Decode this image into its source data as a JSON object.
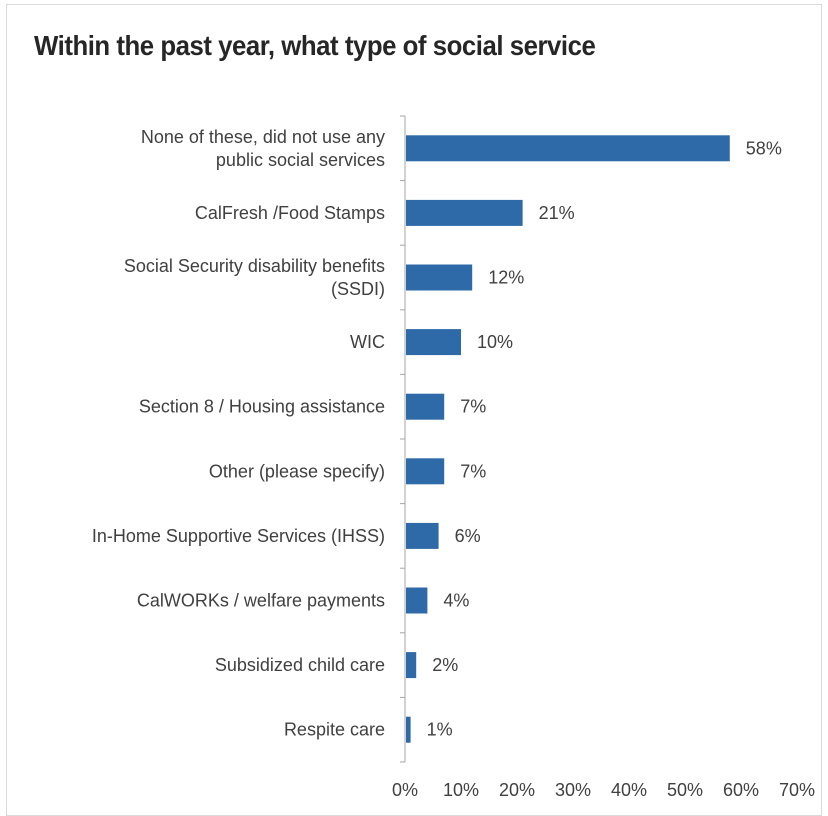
{
  "chart_data": {
    "type": "bar",
    "orientation": "horizontal",
    "title": "Within the past year, what type of social service",
    "categories": [
      [
        "None of these, did not use any",
        "public social services"
      ],
      [
        "CalFresh /Food Stamps"
      ],
      [
        "Social Security disability benefits",
        "(SSDI)"
      ],
      [
        "WIC"
      ],
      [
        "Section 8 / Housing assistance"
      ],
      [
        "Other (please specify)"
      ],
      [
        "In-Home Supportive Services (IHSS)"
      ],
      [
        "CalWORKs / welfare payments"
      ],
      [
        "Subsidized child care"
      ],
      [
        "Respite care"
      ]
    ],
    "values": [
      58,
      21,
      12,
      10,
      7,
      7,
      6,
      4,
      2,
      1
    ],
    "value_labels": [
      "58%",
      "21%",
      "12%",
      "10%",
      "7%",
      "7%",
      "6%",
      "4%",
      "2%",
      "1%"
    ],
    "xlim": [
      0,
      70
    ],
    "x_ticks": [
      0,
      10,
      20,
      30,
      40,
      50,
      60,
      70
    ],
    "x_tick_labels": [
      "0%",
      "10%",
      "20%",
      "30%",
      "40%",
      "50%",
      "60%",
      "70%"
    ],
    "xlabel": "",
    "ylabel": "",
    "grid": false,
    "legend": "none",
    "bar_color": "#2e6aa7"
  }
}
